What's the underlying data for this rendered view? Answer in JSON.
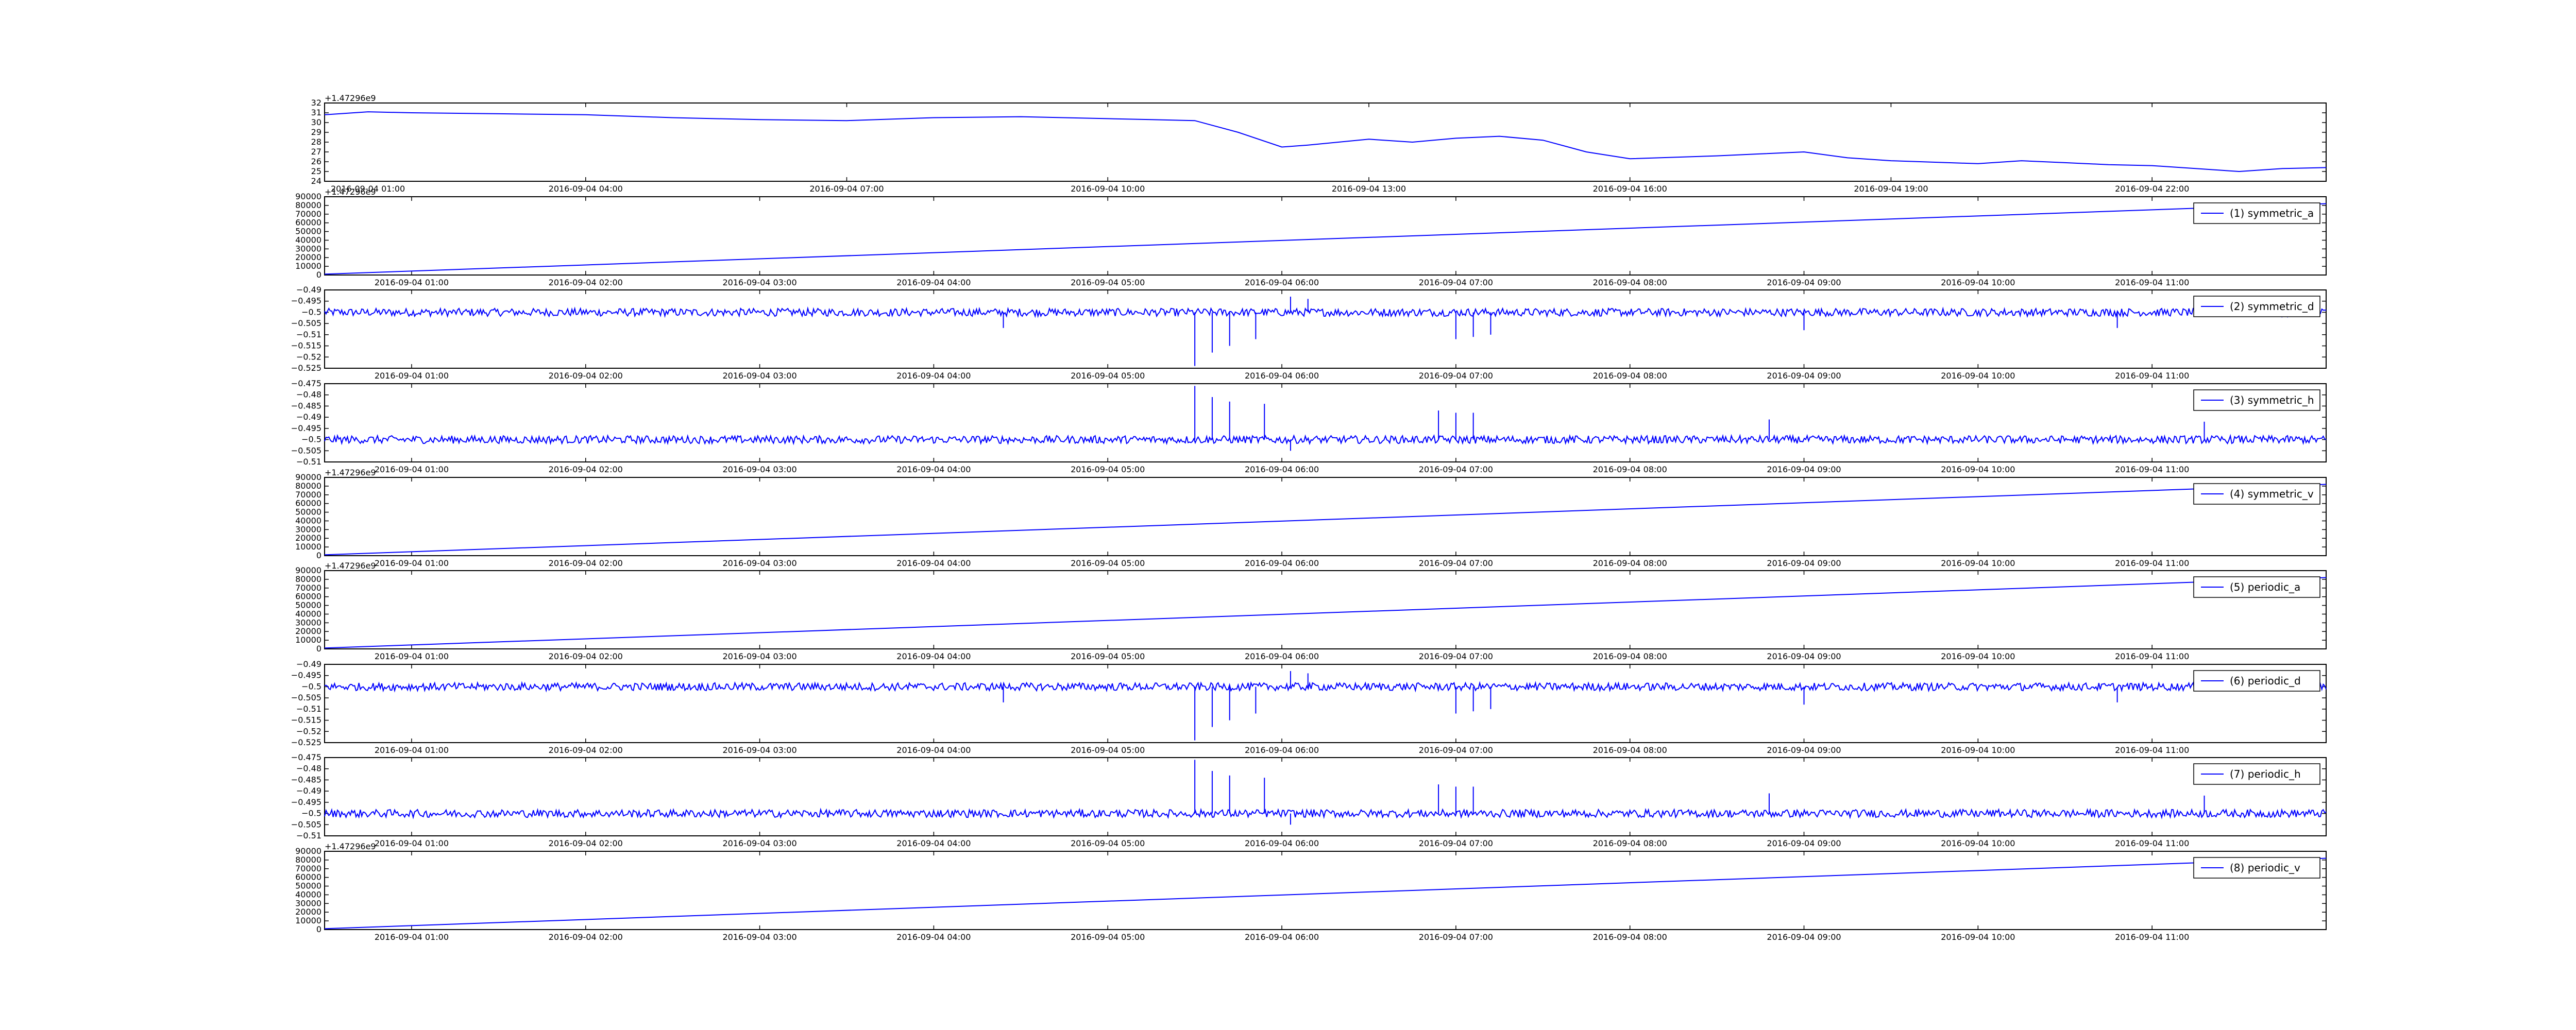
{
  "chart_data": [
    {
      "type": "line",
      "title": "",
      "legend": null,
      "offset_text": "+1.47296e9",
      "ylim": [
        24,
        32
      ],
      "yticks": [
        24,
        25,
        26,
        27,
        28,
        29,
        30,
        31,
        32
      ],
      "xticks": [
        "2016-09-04 04:00",
        "2016-09-04 07:00",
        "2016-09-04 10:00",
        "2016-09-04 13:00",
        "2016-09-04 16:00",
        "2016-09-04 19:00",
        "2016-09-04 22:00"
      ],
      "x_first_label": "2016-09-04 01:00",
      "xlim_hours": [
        0.0,
        23.0
      ],
      "x": [
        0.0,
        0.5,
        1.0,
        2.0,
        3.0,
        4.0,
        5.0,
        6.0,
        7.0,
        8.0,
        9.0,
        9.5,
        10.0,
        10.5,
        11.0,
        11.3,
        12.0,
        12.5,
        13.0,
        13.5,
        14.0,
        14.5,
        15.0,
        16.0,
        16.5,
        17.0,
        17.5,
        18.0,
        19.0,
        19.5,
        20.0,
        20.5,
        21.0,
        21.5,
        22.0,
        22.5,
        23.0
      ],
      "values": [
        30.8,
        31.1,
        31.0,
        30.9,
        30.8,
        30.5,
        30.3,
        30.2,
        30.5,
        30.6,
        30.4,
        30.3,
        30.2,
        29.0,
        27.5,
        27.7,
        28.3,
        28.0,
        28.4,
        28.6,
        28.2,
        27.0,
        26.3,
        26.6,
        26.8,
        27.0,
        26.4,
        26.1,
        25.8,
        26.1,
        25.9,
        25.7,
        25.6,
        25.3,
        25.0,
        25.3,
        25.4
      ]
    },
    {
      "type": "line",
      "legend": "(1) symmetric_a",
      "offset_text": "+1.47296e9",
      "ylim": [
        0,
        90000
      ],
      "yticks": [
        0,
        10000,
        20000,
        30000,
        40000,
        50000,
        60000,
        70000,
        80000,
        90000
      ],
      "xticks": [
        "2016-09-04 01:00",
        "2016-09-04 02:00",
        "2016-09-04 03:00",
        "2016-09-04 04:00",
        "2016-09-04 05:00",
        "2016-09-04 06:00",
        "2016-09-04 07:00",
        "2016-09-04 08:00",
        "2016-09-04 09:00",
        "2016-09-04 10:00",
        "2016-09-04 11:00"
      ],
      "x": [
        0.0,
        11.5
      ],
      "values": [
        1000,
        82000
      ]
    },
    {
      "type": "line",
      "legend": "(2) symmetric_d",
      "offset_text": "",
      "ylim": [
        -0.525,
        -0.49
      ],
      "yticks": [
        -0.525,
        -0.52,
        -0.515,
        -0.51,
        -0.505,
        -0.5,
        -0.495,
        -0.49
      ],
      "xticks": [
        "2016-09-04 01:00",
        "2016-09-04 02:00",
        "2016-09-04 03:00",
        "2016-09-04 04:00",
        "2016-09-04 05:00",
        "2016-09-04 06:00",
        "2016-09-04 07:00",
        "2016-09-04 08:00",
        "2016-09-04 09:00",
        "2016-09-04 10:00",
        "2016-09-04 11:00"
      ],
      "baseline": -0.5,
      "spikes": [
        {
          "x": 5.0,
          "y": -0.524
        },
        {
          "x": 5.1,
          "y": -0.518
        },
        {
          "x": 5.2,
          "y": -0.515
        },
        {
          "x": 5.35,
          "y": -0.512
        },
        {
          "x": 5.55,
          "y": -0.493
        },
        {
          "x": 5.65,
          "y": -0.494
        },
        {
          "x": 6.5,
          "y": -0.512
        },
        {
          "x": 6.6,
          "y": -0.511
        },
        {
          "x": 6.7,
          "y": -0.51
        },
        {
          "x": 3.9,
          "y": -0.507
        },
        {
          "x": 8.5,
          "y": -0.508
        },
        {
          "x": 10.3,
          "y": -0.507
        }
      ]
    },
    {
      "type": "line",
      "legend": "(3) symmetric_h",
      "offset_text": "",
      "ylim": [
        -0.51,
        -0.475
      ],
      "yticks": [
        -0.51,
        -0.505,
        -0.5,
        -0.495,
        -0.49,
        -0.485,
        -0.48,
        -0.475
      ],
      "xticks": [
        "2016-09-04 01:00",
        "2016-09-04 02:00",
        "2016-09-04 03:00",
        "2016-09-04 04:00",
        "2016-09-04 05:00",
        "2016-09-04 06:00",
        "2016-09-04 07:00",
        "2016-09-04 08:00",
        "2016-09-04 09:00",
        "2016-09-04 10:00",
        "2016-09-04 11:00"
      ],
      "baseline": -0.5,
      "spikes": [
        {
          "x": 5.0,
          "y": -0.476
        },
        {
          "x": 5.1,
          "y": -0.481
        },
        {
          "x": 5.2,
          "y": -0.483
        },
        {
          "x": 5.4,
          "y": -0.484
        },
        {
          "x": 5.55,
          "y": -0.505
        },
        {
          "x": 6.4,
          "y": -0.487
        },
        {
          "x": 6.5,
          "y": -0.488
        },
        {
          "x": 6.6,
          "y": -0.488
        },
        {
          "x": 8.3,
          "y": -0.491
        },
        {
          "x": 10.8,
          "y": -0.492
        }
      ]
    },
    {
      "type": "line",
      "legend": "(4) symmetric_v",
      "offset_text": "+1.47296e9",
      "ylim": [
        0,
        90000
      ],
      "yticks": [
        0,
        10000,
        20000,
        30000,
        40000,
        50000,
        60000,
        70000,
        80000,
        90000
      ],
      "xticks": [
        "2016-09-04 01:00",
        "2016-09-04 02:00",
        "2016-09-04 03:00",
        "2016-09-04 04:00",
        "2016-09-04 05:00",
        "2016-09-04 06:00",
        "2016-09-04 07:00",
        "2016-09-04 08:00",
        "2016-09-04 09:00",
        "2016-09-04 10:00",
        "2016-09-04 11:00"
      ],
      "x": [
        0.0,
        11.5
      ],
      "values": [
        1000,
        82000
      ]
    },
    {
      "type": "line",
      "legend": "(5) periodic_a",
      "offset_text": "+1.47296e9",
      "ylim": [
        0,
        90000
      ],
      "yticks": [
        0,
        10000,
        20000,
        30000,
        40000,
        50000,
        60000,
        70000,
        80000,
        90000
      ],
      "xticks": [
        "2016-09-04 01:00",
        "2016-09-04 02:00",
        "2016-09-04 03:00",
        "2016-09-04 04:00",
        "2016-09-04 05:00",
        "2016-09-04 06:00",
        "2016-09-04 07:00",
        "2016-09-04 08:00",
        "2016-09-04 09:00",
        "2016-09-04 10:00",
        "2016-09-04 11:00"
      ],
      "x": [
        0.0,
        11.5
      ],
      "values": [
        1000,
        82000
      ]
    },
    {
      "type": "line",
      "legend": "(6) periodic_d",
      "offset_text": "",
      "ylim": [
        -0.525,
        -0.49
      ],
      "yticks": [
        -0.525,
        -0.52,
        -0.515,
        -0.51,
        -0.505,
        -0.5,
        -0.495,
        -0.49
      ],
      "xticks": [
        "2016-09-04 01:00",
        "2016-09-04 02:00",
        "2016-09-04 03:00",
        "2016-09-04 04:00",
        "2016-09-04 05:00",
        "2016-09-04 06:00",
        "2016-09-04 07:00",
        "2016-09-04 08:00",
        "2016-09-04 09:00",
        "2016-09-04 10:00",
        "2016-09-04 11:00"
      ],
      "baseline": -0.5,
      "spikes": [
        {
          "x": 5.0,
          "y": -0.524
        },
        {
          "x": 5.1,
          "y": -0.518
        },
        {
          "x": 5.2,
          "y": -0.515
        },
        {
          "x": 5.35,
          "y": -0.512
        },
        {
          "x": 5.55,
          "y": -0.493
        },
        {
          "x": 5.65,
          "y": -0.494
        },
        {
          "x": 6.5,
          "y": -0.512
        },
        {
          "x": 6.6,
          "y": -0.511
        },
        {
          "x": 6.7,
          "y": -0.51
        },
        {
          "x": 3.9,
          "y": -0.507
        },
        {
          "x": 8.5,
          "y": -0.508
        },
        {
          "x": 10.3,
          "y": -0.507
        }
      ]
    },
    {
      "type": "line",
      "legend": "(7) periodic_h",
      "offset_text": "",
      "ylim": [
        -0.51,
        -0.475
      ],
      "yticks": [
        -0.51,
        -0.505,
        -0.5,
        -0.495,
        -0.49,
        -0.485,
        -0.48,
        -0.475
      ],
      "xticks": [
        "2016-09-04 01:00",
        "2016-09-04 02:00",
        "2016-09-04 03:00",
        "2016-09-04 04:00",
        "2016-09-04 05:00",
        "2016-09-04 06:00",
        "2016-09-04 07:00",
        "2016-09-04 08:00",
        "2016-09-04 09:00",
        "2016-09-04 10:00",
        "2016-09-04 11:00"
      ],
      "baseline": -0.5,
      "spikes": [
        {
          "x": 5.0,
          "y": -0.476
        },
        {
          "x": 5.1,
          "y": -0.481
        },
        {
          "x": 5.2,
          "y": -0.483
        },
        {
          "x": 5.4,
          "y": -0.484
        },
        {
          "x": 5.55,
          "y": -0.505
        },
        {
          "x": 6.4,
          "y": -0.487
        },
        {
          "x": 6.5,
          "y": -0.488
        },
        {
          "x": 6.6,
          "y": -0.488
        },
        {
          "x": 8.3,
          "y": -0.491
        },
        {
          "x": 10.8,
          "y": -0.492
        }
      ]
    },
    {
      "type": "line",
      "legend": "(8) periodic_v",
      "offset_text": "+1.47296e9",
      "ylim": [
        0,
        90000
      ],
      "yticks": [
        0,
        10000,
        20000,
        30000,
        40000,
        50000,
        60000,
        70000,
        80000,
        90000
      ],
      "xticks": [
        "2016-09-04 01:00",
        "2016-09-04 02:00",
        "2016-09-04 03:00",
        "2016-09-04 04:00",
        "2016-09-04 05:00",
        "2016-09-04 06:00",
        "2016-09-04 07:00",
        "2016-09-04 08:00",
        "2016-09-04 09:00",
        "2016-09-04 10:00",
        "2016-09-04 11:00"
      ],
      "x": [
        0.0,
        11.5
      ],
      "values": [
        1000,
        82000
      ]
    }
  ],
  "colors": {
    "series": "#0000ff",
    "axes": "#000000",
    "background": "#ffffff"
  }
}
